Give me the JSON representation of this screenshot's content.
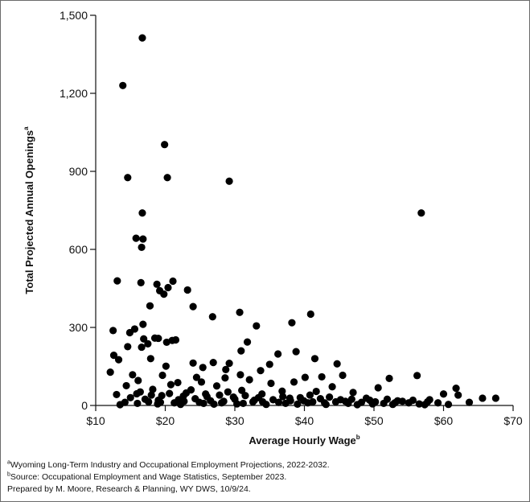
{
  "chart_data": {
    "type": "scatter",
    "xlabel": "Average Hourly Wage",
    "xlabel_sup": "b",
    "ylabel": "Total Projected Annual Openings",
    "ylabel_sup": "a",
    "xlim": [
      10,
      70
    ],
    "ylim": [
      0,
      1500
    ],
    "xticks": [
      10,
      20,
      30,
      40,
      50,
      60,
      70
    ],
    "xtick_labels": [
      "$10",
      "$20",
      "$30",
      "$40",
      "$50",
      "$60",
      "$70"
    ],
    "yticks": [
      0,
      300,
      600,
      900,
      1200,
      1500
    ],
    "ytick_labels": [
      "0",
      "300",
      "600",
      "900",
      "1,200",
      "1,500"
    ],
    "grid": false,
    "marker_color": "#000000",
    "points": [
      [
        16.7,
        1413
      ],
      [
        13.9,
        1230
      ],
      [
        19.9,
        1003
      ],
      [
        14.6,
        876
      ],
      [
        20.3,
        876
      ],
      [
        29.2,
        862
      ],
      [
        16.7,
        740
      ],
      [
        56.8,
        740
      ],
      [
        15.8,
        643
      ],
      [
        16.8,
        640
      ],
      [
        16.6,
        608
      ],
      [
        13.1,
        479
      ],
      [
        16.5,
        472
      ],
      [
        18.8,
        466
      ],
      [
        21.1,
        478
      ],
      [
        20.4,
        453
      ],
      [
        19.2,
        441
      ],
      [
        19.8,
        428
      ],
      [
        23.2,
        444
      ],
      [
        17.8,
        383
      ],
      [
        24.0,
        380
      ],
      [
        26.8,
        341
      ],
      [
        30.7,
        358
      ],
      [
        40.9,
        351
      ],
      [
        38.2,
        318
      ],
      [
        16.8,
        312
      ],
      [
        33.1,
        306
      ],
      [
        15.6,
        294
      ],
      [
        12.5,
        288
      ],
      [
        14.9,
        280
      ],
      [
        18.5,
        259
      ],
      [
        19.0,
        258
      ],
      [
        16.9,
        256
      ],
      [
        21.0,
        250
      ],
      [
        21.5,
        252
      ],
      [
        20.2,
        243
      ],
      [
        17.5,
        237
      ],
      [
        31.8,
        244
      ],
      [
        16.6,
        224
      ],
      [
        14.6,
        226
      ],
      [
        30.9,
        210
      ],
      [
        38.8,
        207
      ],
      [
        36.2,
        198
      ],
      [
        12.6,
        193
      ],
      [
        13.3,
        176
      ],
      [
        17.9,
        180
      ],
      [
        41.5,
        180
      ],
      [
        26.9,
        165
      ],
      [
        24.0,
        163
      ],
      [
        29.2,
        162
      ],
      [
        35.0,
        158
      ],
      [
        44.7,
        160
      ],
      [
        20.1,
        151
      ],
      [
        25.4,
        146
      ],
      [
        28.7,
        138
      ],
      [
        33.7,
        134
      ],
      [
        12.1,
        128
      ],
      [
        15.3,
        118
      ],
      [
        19.6,
        116
      ],
      [
        30.8,
        118
      ],
      [
        45.5,
        116
      ],
      [
        52.2,
        104
      ],
      [
        56.2,
        115
      ],
      [
        24.5,
        108
      ],
      [
        28.6,
        106
      ],
      [
        32.1,
        99
      ],
      [
        40.1,
        108
      ],
      [
        42.5,
        110
      ],
      [
        16.1,
        96
      ],
      [
        21.8,
        88
      ],
      [
        25.2,
        90
      ],
      [
        35.2,
        85
      ],
      [
        38.5,
        90
      ],
      [
        14.4,
        76
      ],
      [
        20.8,
        80
      ],
      [
        27.4,
        75
      ],
      [
        44.0,
        72
      ],
      [
        50.6,
        68
      ],
      [
        61.8,
        66
      ],
      [
        18.2,
        62
      ],
      [
        23.7,
        60
      ],
      [
        31.0,
        58
      ],
      [
        36.8,
        55
      ],
      [
        41.7,
        54
      ],
      [
        47.0,
        50
      ],
      [
        60.0,
        44
      ],
      [
        13.0,
        42
      ],
      [
        15.9,
        45
      ],
      [
        19.5,
        38
      ],
      [
        22.6,
        36
      ],
      [
        26.0,
        34
      ],
      [
        29.8,
        32
      ],
      [
        33.4,
        30
      ],
      [
        37.9,
        28
      ],
      [
        42.3,
        26
      ],
      [
        46.8,
        24
      ],
      [
        49.4,
        20
      ],
      [
        53.4,
        18
      ],
      [
        58.0,
        22
      ],
      [
        62.1,
        40
      ],
      [
        65.6,
        28
      ],
      [
        67.5,
        28
      ],
      [
        63.7,
        12
      ],
      [
        55.0,
        10
      ],
      [
        51.4,
        8
      ],
      [
        48.2,
        12
      ],
      [
        44.5,
        14
      ],
      [
        40.5,
        10
      ],
      [
        36.3,
        12
      ],
      [
        32.6,
        14
      ],
      [
        28.4,
        16
      ],
      [
        24.9,
        12
      ],
      [
        21.3,
        10
      ],
      [
        17.6,
        14
      ],
      [
        14.2,
        12
      ],
      [
        13.5,
        3
      ],
      [
        18.9,
        6
      ],
      [
        22.2,
        4
      ],
      [
        27.0,
        5
      ],
      [
        30.3,
        6
      ],
      [
        34.5,
        4
      ],
      [
        39.0,
        5
      ],
      [
        43.1,
        4
      ],
      [
        47.6,
        3
      ],
      [
        52.7,
        4
      ],
      [
        57.3,
        3
      ],
      [
        60.7,
        4
      ],
      [
        15.0,
        30
      ],
      [
        16.4,
        52
      ],
      [
        17.1,
        24
      ],
      [
        18.0,
        40
      ],
      [
        19.0,
        20
      ],
      [
        20.6,
        46
      ],
      [
        21.9,
        22
      ],
      [
        23.0,
        48
      ],
      [
        24.3,
        26
      ],
      [
        25.8,
        44
      ],
      [
        26.5,
        18
      ],
      [
        27.8,
        40
      ],
      [
        29.0,
        52
      ],
      [
        30.0,
        24
      ],
      [
        31.5,
        38
      ],
      [
        32.8,
        20
      ],
      [
        33.9,
        44
      ],
      [
        35.5,
        22
      ],
      [
        36.9,
        34
      ],
      [
        38.0,
        18
      ],
      [
        39.4,
        30
      ],
      [
        40.8,
        40
      ],
      [
        41.2,
        14
      ],
      [
        43.6,
        32
      ],
      [
        45.2,
        22
      ],
      [
        46.3,
        8
      ],
      [
        48.9,
        28
      ],
      [
        50.2,
        14
      ],
      [
        51.9,
        24
      ],
      [
        54.1,
        16
      ],
      [
        55.6,
        20
      ],
      [
        57.7,
        14
      ],
      [
        59.2,
        10
      ],
      [
        16.0,
        8
      ],
      [
        19.3,
        12
      ],
      [
        22.7,
        16
      ],
      [
        25.5,
        8
      ],
      [
        28.1,
        10
      ],
      [
        31.2,
        8
      ],
      [
        34.0,
        14
      ],
      [
        37.3,
        8
      ],
      [
        39.9,
        18
      ],
      [
        42.9,
        10
      ],
      [
        45.9,
        16
      ],
      [
        49.8,
        6
      ],
      [
        53.0,
        10
      ],
      [
        56.5,
        6
      ]
    ],
    "footnote_a_sup": "a",
    "footnote_a": "Wyoming Long-Term Industry and Occupational Employment Projections, 2022-2032.",
    "footnote_b_sup": "b",
    "footnote_b": "Source: Occupational Employment and Wage Statistics, September 2023.",
    "prepared_by": "Prepared by M. Moore, Research & Planning, WY DWS, 10/9/24."
  }
}
